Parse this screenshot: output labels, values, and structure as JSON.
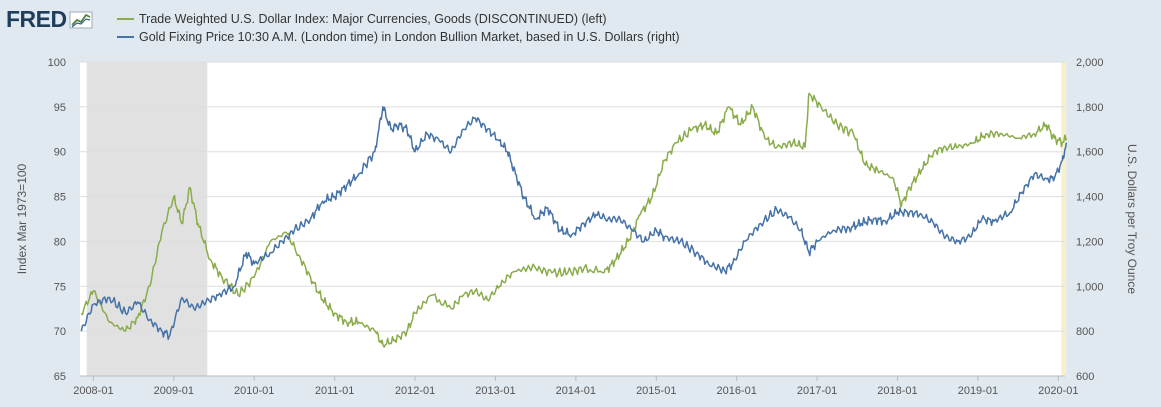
{
  "logo": {
    "text": "FRED",
    "icon": "chart-line-icon"
  },
  "chart_data": {
    "type": "line",
    "title": "",
    "xlabel": "",
    "x_range": [
      "2007-11",
      "2020-02"
    ],
    "x_ticks": [
      "2008-01",
      "2009-01",
      "2010-01",
      "2011-01",
      "2012-01",
      "2013-01",
      "2014-01",
      "2015-01",
      "2016-01",
      "2017-01",
      "2018-01",
      "2019-01",
      "2020-01"
    ],
    "recession": {
      "start": "2007-12",
      "end": "2009-06"
    },
    "highlight": {
      "start": "2020-01",
      "end": "2020-02"
    },
    "left_axis": {
      "label": "Index Mar 1973=100",
      "range": [
        65,
        100
      ],
      "ticks": [
        "65",
        "70",
        "75",
        "80",
        "85",
        "90",
        "95",
        "100"
      ]
    },
    "right_axis": {
      "label": "U.S. Dollars per Troy Ounce",
      "range": [
        600,
        2000
      ],
      "ticks": [
        "600",
        "800",
        "1,000",
        "1,200",
        "1,400",
        "1,600",
        "1,800",
        "2,000"
      ]
    },
    "grid": true,
    "series": [
      {
        "name": "Trade Weighted U.S. Dollar Index: Major Currencies, Goods (DISCONTINUED) (left)",
        "axis": "left",
        "color": "#8aac4b",
        "x": [
          2007.85,
          2008.0,
          2008.2,
          2008.4,
          2008.55,
          2008.7,
          2008.85,
          2009.0,
          2009.1,
          2009.2,
          2009.3,
          2009.45,
          2009.6,
          2009.8,
          2010.0,
          2010.2,
          2010.4,
          2010.55,
          2010.7,
          2010.85,
          2011.0,
          2011.15,
          2011.3,
          2011.5,
          2011.6,
          2011.75,
          2011.9,
          2012.0,
          2012.2,
          2012.45,
          2012.6,
          2012.75,
          2012.9,
          2013.05,
          2013.2,
          2013.5,
          2013.7,
          2013.9,
          2014.1,
          2014.35,
          2014.5,
          2014.65,
          2014.8,
          2014.95,
          2015.1,
          2015.25,
          2015.45,
          2015.6,
          2015.75,
          2015.9,
          2016.05,
          2016.2,
          2016.35,
          2016.5,
          2016.7,
          2016.85,
          2016.9,
          2017.05,
          2017.25,
          2017.45,
          2017.6,
          2017.75,
          2017.95,
          2018.05,
          2018.15,
          2018.3,
          2018.45,
          2018.6,
          2018.75,
          2018.95,
          2019.1,
          2019.3,
          2019.5,
          2019.7,
          2019.85,
          2019.95,
          2020.05,
          2020.1
        ],
        "values": [
          72,
          74.5,
          71,
          70,
          71.5,
          75,
          81,
          85,
          82,
          86,
          82,
          78,
          76,
          74,
          76,
          80,
          81,
          78.5,
          76,
          73.5,
          72,
          71,
          71,
          70,
          68.5,
          69,
          70,
          72,
          74,
          72.5,
          74,
          74.5,
          73.5,
          75,
          76.5,
          77,
          76.5,
          76.5,
          77,
          76.5,
          78,
          80,
          83,
          85,
          89,
          91,
          92.5,
          93,
          92,
          95,
          93,
          95,
          91.5,
          90.5,
          91,
          90.5,
          96.5,
          95,
          93,
          92,
          88.5,
          88,
          87,
          84,
          86,
          88,
          90,
          90.5,
          90.5,
          91,
          92,
          92,
          91.5,
          92,
          93,
          91.5,
          91,
          91.5
        ]
      },
      {
        "name": "Gold Fixing Price 10:30 A.M. (London time) in London Bullion Market, based in U.S. Dollars (right)",
        "axis": "right",
        "color": "#4572a7",
        "x": [
          2007.85,
          2008.0,
          2008.2,
          2008.4,
          2008.55,
          2008.7,
          2008.85,
          2008.95,
          2009.1,
          2009.25,
          2009.4,
          2009.55,
          2009.75,
          2009.9,
          2010.0,
          2010.2,
          2010.35,
          2010.5,
          2010.7,
          2010.85,
          2011.0,
          2011.15,
          2011.3,
          2011.5,
          2011.6,
          2011.7,
          2011.8,
          2011.9,
          2012.0,
          2012.15,
          2012.3,
          2012.45,
          2012.6,
          2012.75,
          2012.9,
          2013.05,
          2013.15,
          2013.25,
          2013.35,
          2013.5,
          2013.65,
          2013.8,
          2013.95,
          2014.1,
          2014.25,
          2014.4,
          2014.55,
          2014.7,
          2014.85,
          2015.0,
          2015.1,
          2015.3,
          2015.5,
          2015.65,
          2015.85,
          2015.95,
          2016.1,
          2016.3,
          2016.5,
          2016.65,
          2016.8,
          2016.9,
          2017.0,
          2017.2,
          2017.4,
          2017.55,
          2017.7,
          2017.85,
          2018.0,
          2018.15,
          2018.3,
          2018.45,
          2018.6,
          2018.75,
          2018.9,
          2019.05,
          2019.2,
          2019.4,
          2019.55,
          2019.7,
          2019.85,
          2019.95,
          2020.05,
          2020.1
        ],
        "values": [
          800,
          920,
          950,
          880,
          930,
          850,
          800,
          780,
          950,
          900,
          930,
          960,
          1000,
          1150,
          1100,
          1150,
          1200,
          1250,
          1300,
          1380,
          1400,
          1450,
          1500,
          1600,
          1800,
          1700,
          1720,
          1700,
          1600,
          1680,
          1650,
          1600,
          1700,
          1750,
          1700,
          1650,
          1600,
          1500,
          1400,
          1300,
          1350,
          1250,
          1230,
          1280,
          1320,
          1300,
          1300,
          1250,
          1200,
          1250,
          1220,
          1200,
          1150,
          1100,
          1070,
          1100,
          1200,
          1280,
          1340,
          1310,
          1250,
          1150,
          1200,
          1250,
          1260,
          1280,
          1300,
          1290,
          1330,
          1330,
          1320,
          1280,
          1220,
          1200,
          1220,
          1300,
          1290,
          1330,
          1420,
          1500,
          1480,
          1480,
          1560,
          1640
        ]
      }
    ]
  }
}
